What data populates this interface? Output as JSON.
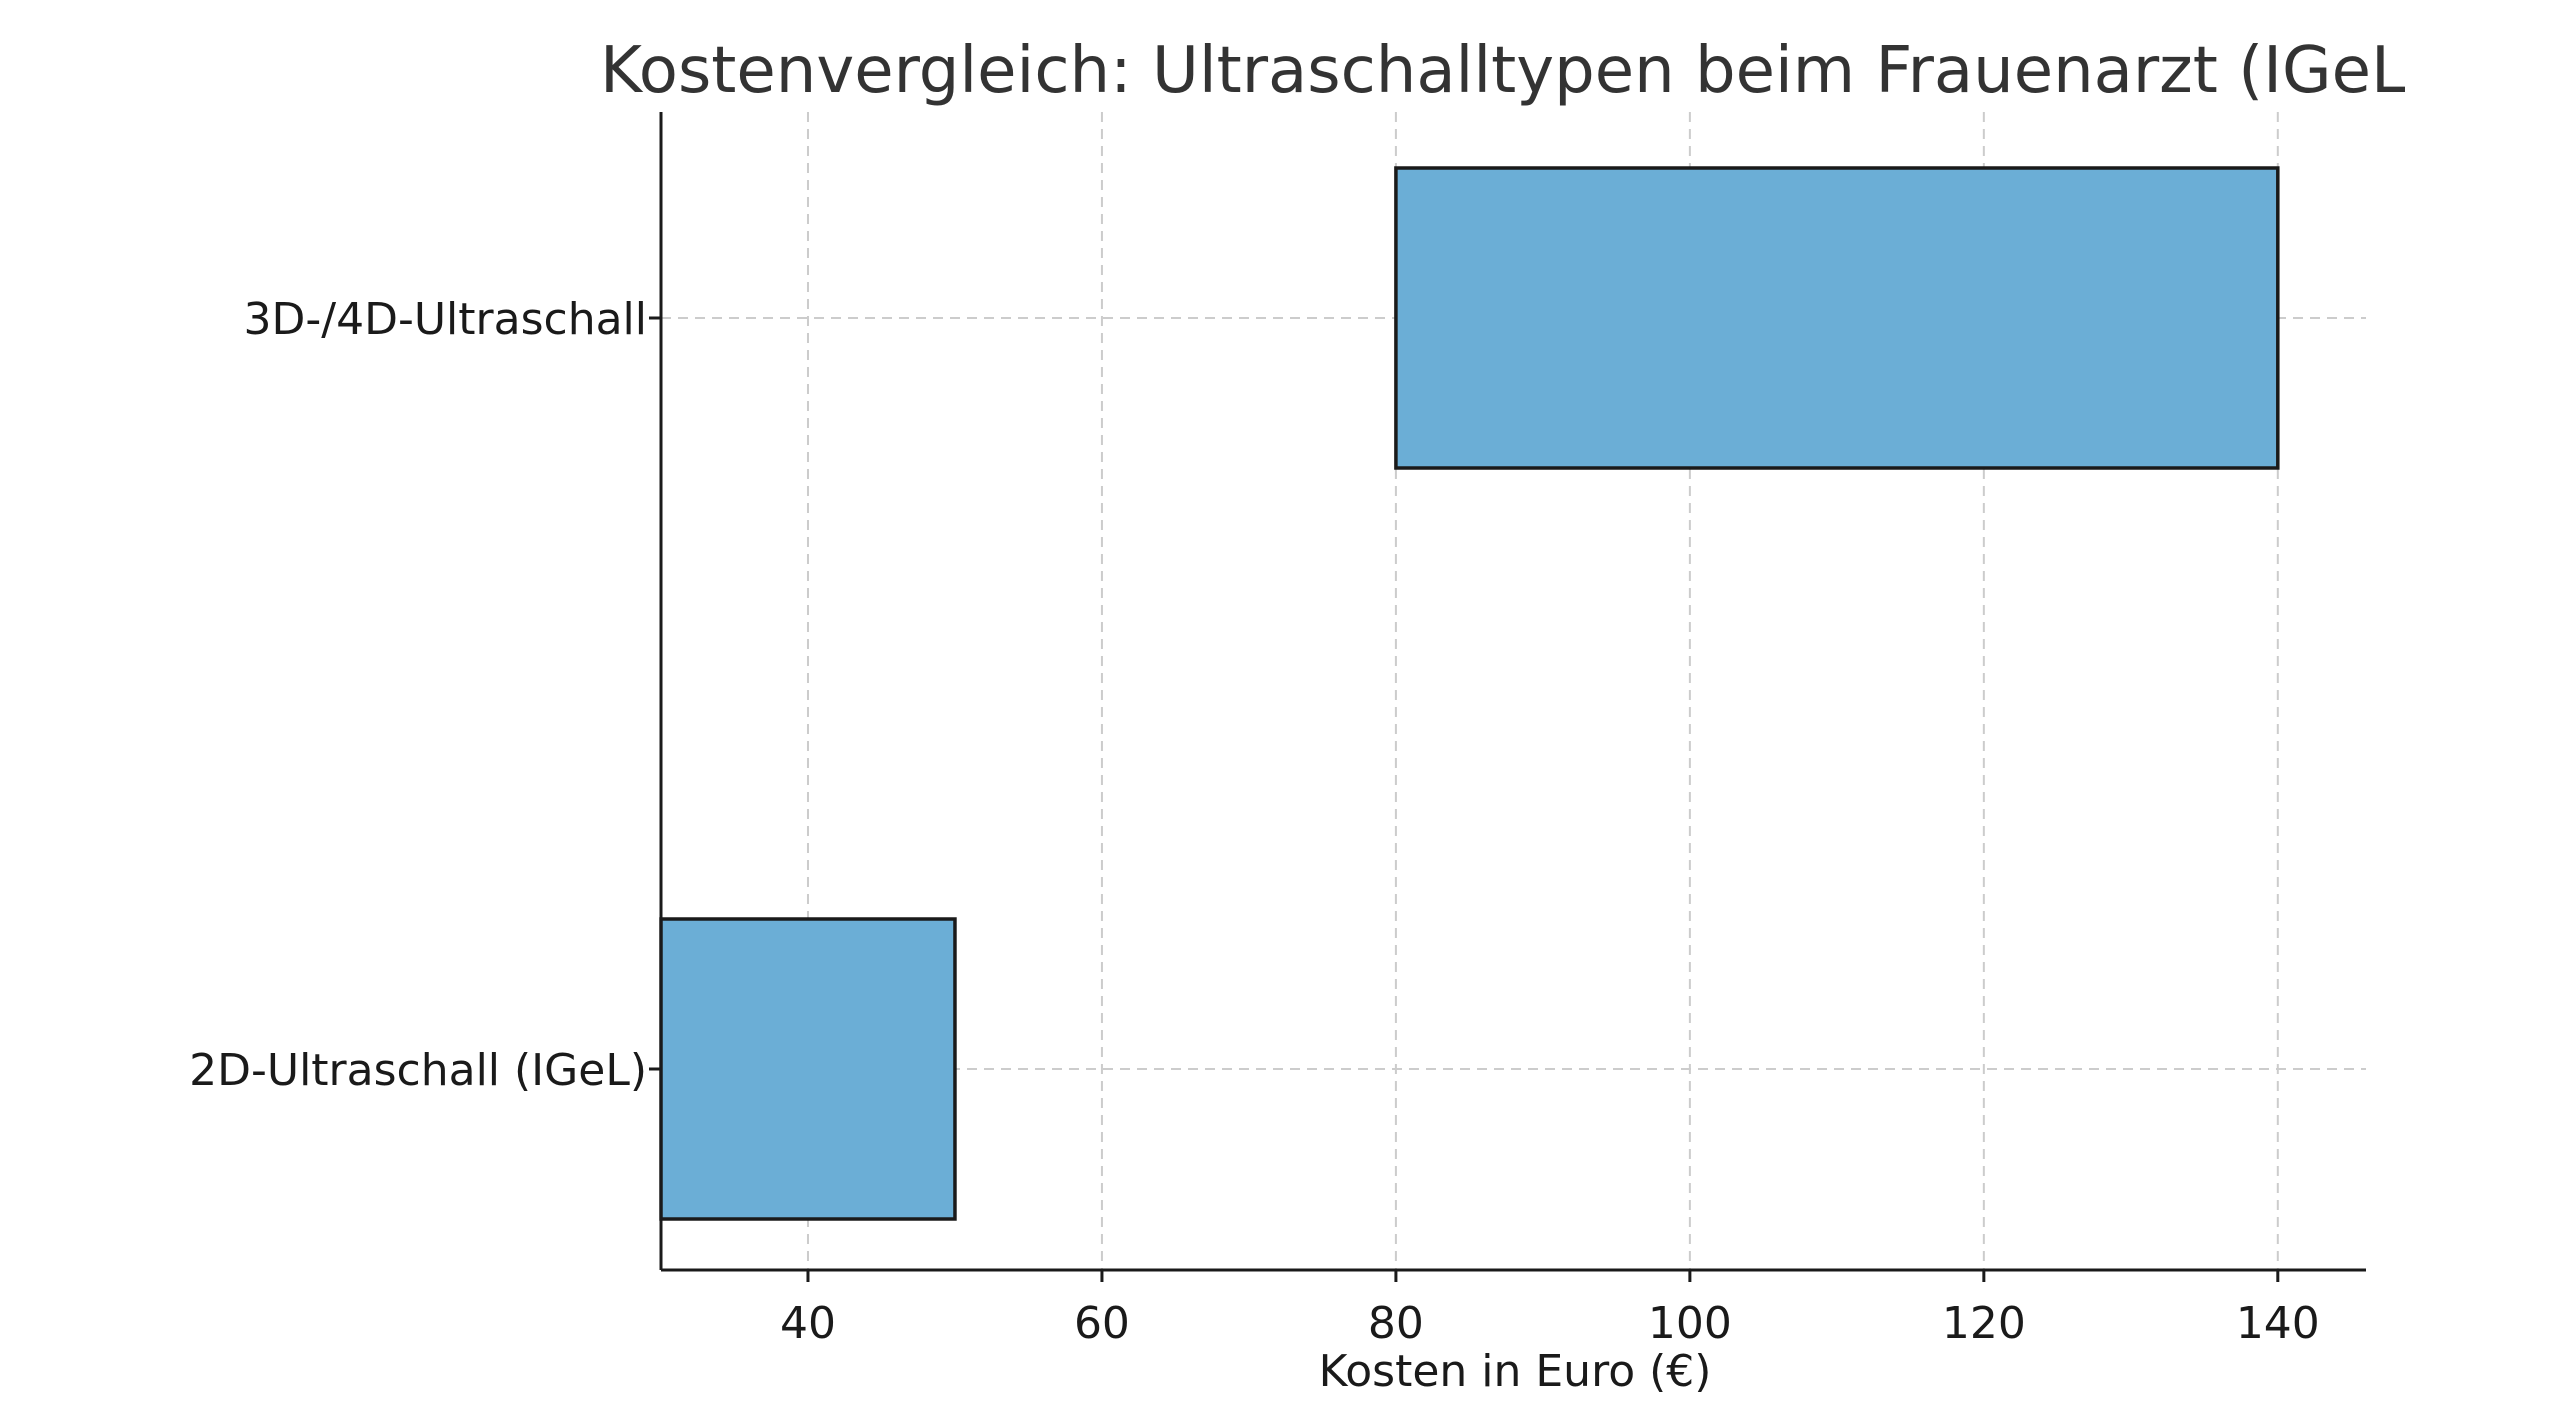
{
  "chart_data": {
    "type": "bar",
    "orientation": "horizontal",
    "title": "Kostenvergleich: Ultraschalltypen beim Frauenarzt (IGeL)",
    "xlabel": "Kosten in Euro (€)",
    "ylabel": "",
    "xlim": [
      30,
      146
    ],
    "x_ticks": [
      40,
      60,
      80,
      100,
      120,
      140
    ],
    "grid": true,
    "categories": [
      "2D-Ultraschall (IGeL)",
      "3D-/4D-Ultraschall"
    ],
    "ranges": [
      {
        "category": "2D-Ultraschall (IGeL)",
        "min": 30,
        "max": 50
      },
      {
        "category": "3D-/4D-Ultraschall",
        "min": 80,
        "max": 140
      }
    ],
    "bar_color": "#6baed6"
  }
}
